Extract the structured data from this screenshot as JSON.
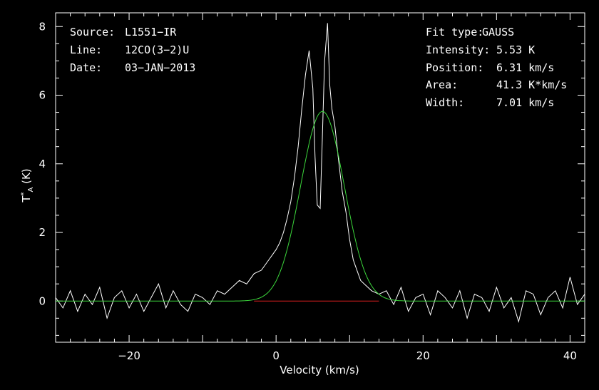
{
  "chart_data": {
    "type": "line",
    "xlabel": "Velocity (km/s)",
    "ylabel": "T*A (K)",
    "xlim": [
      -30,
      42
    ],
    "ylim": [
      -1.2,
      8.4
    ],
    "xticks": [
      -20,
      0,
      20,
      40
    ],
    "yticks": [
      0,
      2,
      4,
      6,
      8
    ],
    "xtick_labels": [
      "−20",
      "0",
      "20",
      "40"
    ],
    "ytick_labels": [
      "0",
      "2",
      "4",
      "6",
      "8"
    ],
    "spectrum": {
      "color": "#ffffff",
      "x": [
        -30,
        -29,
        -28,
        -27,
        -26,
        -25,
        -24,
        -23,
        -22,
        -21,
        -20,
        -19,
        -18,
        -17,
        -16,
        -15,
        -14,
        -13,
        -12,
        -11,
        -10,
        -9,
        -8,
        -7,
        -6,
        -5,
        -4,
        -3,
        -2,
        -1,
        0,
        0.5,
        1,
        1.5,
        2,
        2.5,
        3,
        3.5,
        4,
        4.5,
        5,
        5.3,
        5.6,
        6,
        6.3,
        6.6,
        7,
        7.3,
        7.6,
        8,
        8.5,
        9,
        9.5,
        10,
        10.5,
        11,
        11.5,
        12,
        13,
        14,
        15,
        16,
        17,
        18,
        19,
        20,
        21,
        22,
        23,
        24,
        25,
        26,
        27,
        28,
        29,
        30,
        31,
        32,
        33,
        34,
        35,
        36,
        37,
        38,
        39,
        40,
        41,
        42
      ],
      "y": [
        0.1,
        -0.2,
        0.3,
        -0.3,
        0.2,
        -0.1,
        0.4,
        -0.5,
        0.1,
        0.3,
        -0.2,
        0.2,
        -0.3,
        0.1,
        0.5,
        -0.2,
        0.3,
        -0.1,
        -0.3,
        0.2,
        0.1,
        -0.1,
        0.3,
        0.2,
        0.4,
        0.6,
        0.5,
        0.8,
        0.9,
        1.2,
        1.5,
        1.7,
        2.0,
        2.4,
        2.9,
        3.6,
        4.5,
        5.6,
        6.6,
        7.3,
        6.2,
        4.2,
        2.8,
        2.7,
        4.8,
        7.0,
        8.1,
        6.3,
        5.6,
        5.1,
        4.1,
        3.2,
        2.6,
        1.8,
        1.2,
        0.9,
        0.6,
        0.5,
        0.3,
        0.2,
        0.3,
        -0.1,
        0.4,
        -0.3,
        0.1,
        0.2,
        -0.4,
        0.3,
        0.1,
        -0.2,
        0.3,
        -0.5,
        0.2,
        0.1,
        -0.3,
        0.4,
        -0.2,
        0.1,
        -0.6,
        0.3,
        0.2,
        -0.4,
        0.1,
        0.3,
        -0.2,
        0.7,
        -0.1,
        0.2
      ]
    },
    "gauss_fit": {
      "color": "#3cd83c",
      "intensity": 5.53,
      "position": 6.31,
      "width_fwhm": 7.01
    },
    "baseline": {
      "color": "#e02020",
      "x_range": [
        -3,
        14
      ],
      "y": 0
    }
  },
  "info_left": {
    "source_label": "Source:",
    "source_value": "L1551−IR",
    "line_label": "Line:",
    "line_value": "12CO(3−2)U",
    "date_label": "Date:",
    "date_value": "03−JAN−2013"
  },
  "info_right": {
    "fit_label": "Fit type:",
    "fit_value": "GAUSS",
    "intensity_label": "Intensity:",
    "intensity_value": "5.53 K",
    "position_label": "Position:",
    "position_value": "6.31 km/s",
    "area_label": "Area:",
    "area_value": "41.3 K*km/s",
    "width_label": "Width:",
    "width_value": "7.01 km/s"
  },
  "ylabel_parts": {
    "t": "T",
    "sup": "*",
    "sub": "A",
    "unit": " (K)"
  }
}
